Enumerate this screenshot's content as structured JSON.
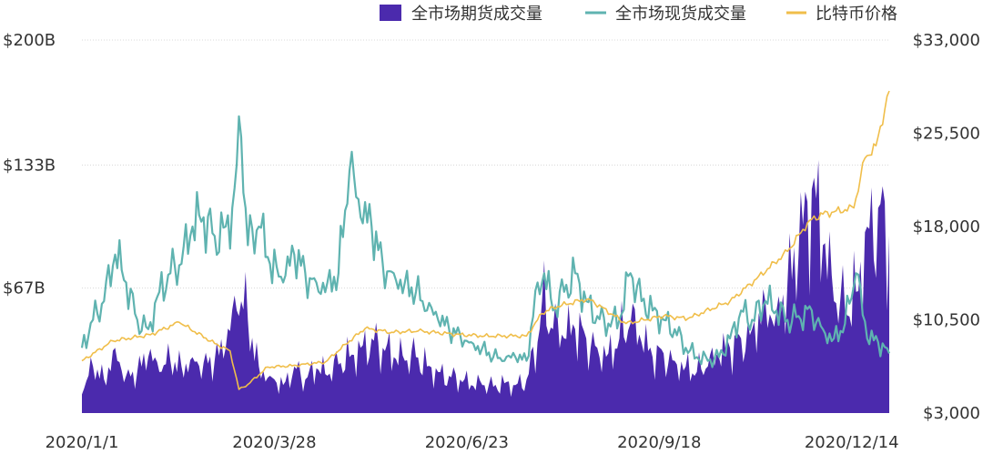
{
  "chart_data": {
    "type": "area",
    "legend": [
      {
        "name": "全市场期货成交量",
        "color": "#4b2aad",
        "marker": "square"
      },
      {
        "name": "全市场现货成交量",
        "color": "#5fb3b0",
        "marker": "line"
      },
      {
        "name": "比特币价格",
        "color": "#f0be4a",
        "marker": "line"
      }
    ],
    "legend_position": "top-right",
    "x_ticks": [
      "2020/1/1",
      "2020/3/28",
      "2020/6/23",
      "2020/9/18",
      "2020/12/14"
    ],
    "x_range": [
      "2020/1/1",
      "2020/12/31"
    ],
    "y_left": {
      "ticks": [
        "$200B",
        "$133B",
        "$67B"
      ],
      "tick_values": [
        200,
        133,
        67
      ],
      "range": [
        0,
        200
      ],
      "unit": "B USD"
    },
    "y_right": {
      "ticks": [
        "$33,000",
        "$25,500",
        "$18,000",
        "$10,500",
        "$3,000"
      ],
      "tick_values": [
        33000,
        25500,
        18000,
        10500,
        3000
      ],
      "range": [
        3000,
        33000
      ]
    },
    "grid": "horizontal dotted",
    "series": [
      {
        "name": "全市场期货成交量",
        "axis": "left",
        "kind": "area",
        "points": [
          [
            "2020/1/1",
            10
          ],
          [
            "2020/1/6",
            25
          ],
          [
            "2020/1/11",
            18
          ],
          [
            "2020/1/16",
            35
          ],
          [
            "2020/1/21",
            20
          ],
          [
            "2020/1/26",
            22
          ],
          [
            "2020/1/31",
            30
          ],
          [
            "2020/2/5",
            22
          ],
          [
            "2020/2/10",
            28
          ],
          [
            "2020/2/15",
            25
          ],
          [
            "2020/2/20",
            30
          ],
          [
            "2020/2/25",
            27
          ],
          [
            "2020/3/1",
            28
          ],
          [
            "2020/3/6",
            35
          ],
          [
            "2020/3/11",
            55
          ],
          [
            "2020/3/13",
            60
          ],
          [
            "2020/3/16",
            50
          ],
          [
            "2020/3/21",
            25
          ],
          [
            "2020/3/26",
            20
          ],
          [
            "2020/4/1",
            15
          ],
          [
            "2020/4/6",
            25
          ],
          [
            "2020/4/11",
            18
          ],
          [
            "2020/4/16",
            24
          ],
          [
            "2020/4/21",
            20
          ],
          [
            "2020/4/26",
            26
          ],
          [
            "2020/5/1",
            30
          ],
          [
            "2020/5/6",
            35
          ],
          [
            "2020/5/11",
            40
          ],
          [
            "2020/5/16",
            35
          ],
          [
            "2020/5/21",
            30
          ],
          [
            "2020/5/26",
            28
          ],
          [
            "2020/5/31",
            30
          ],
          [
            "2020/6/5",
            25
          ],
          [
            "2020/6/10",
            22
          ],
          [
            "2020/6/15",
            20
          ],
          [
            "2020/6/20",
            18
          ],
          [
            "2020/6/25",
            15
          ],
          [
            "2020/6/30",
            15
          ],
          [
            "2020/7/5",
            14
          ],
          [
            "2020/7/10",
            16
          ],
          [
            "2020/7/15",
            15
          ],
          [
            "2020/7/20",
            18
          ],
          [
            "2020/7/25",
            38
          ],
          [
            "2020/7/27",
            60
          ],
          [
            "2020/8/1",
            45
          ],
          [
            "2020/8/6",
            40
          ],
          [
            "2020/8/11",
            45
          ],
          [
            "2020/8/16",
            40
          ],
          [
            "2020/8/21",
            35
          ],
          [
            "2020/8/26",
            32
          ],
          [
            "2020/8/31",
            40
          ],
          [
            "2020/9/5",
            48
          ],
          [
            "2020/9/10",
            38
          ],
          [
            "2020/9/15",
            30
          ],
          [
            "2020/9/20",
            32
          ],
          [
            "2020/9/25",
            28
          ],
          [
            "2020/9/30",
            25
          ],
          [
            "2020/10/5",
            22
          ],
          [
            "2020/10/10",
            25
          ],
          [
            "2020/10/15",
            30
          ],
          [
            "2020/10/20",
            35
          ],
          [
            "2020/10/25",
            40
          ],
          [
            "2020/10/30",
            45
          ],
          [
            "2020/11/5",
            60
          ],
          [
            "2020/11/10",
            55
          ],
          [
            "2020/11/15",
            70
          ],
          [
            "2020/11/20",
            85
          ],
          [
            "2020/11/26",
            120
          ],
          [
            "2020/12/1",
            90
          ],
          [
            "2020/12/6",
            60
          ],
          [
            "2020/12/11",
            55
          ],
          [
            "2020/12/16",
            65
          ],
          [
            "2020/12/21",
            100
          ],
          [
            "2020/12/26",
            110
          ],
          [
            "2020/12/31",
            95
          ]
        ]
      },
      {
        "name": "全市场现货成交量",
        "axis": "left",
        "kind": "line",
        "points": [
          [
            "2020/1/1",
            35
          ],
          [
            "2020/1/6",
            50
          ],
          [
            "2020/1/11",
            60
          ],
          [
            "2020/1/16",
            85
          ],
          [
            "2020/1/21",
            70
          ],
          [
            "2020/1/26",
            50
          ],
          [
            "2020/1/31",
            45
          ],
          [
            "2020/2/5",
            65
          ],
          [
            "2020/2/10",
            75
          ],
          [
            "2020/2/15",
            80
          ],
          [
            "2020/2/20",
            100
          ],
          [
            "2020/2/25",
            105
          ],
          [
            "2020/3/1",
            95
          ],
          [
            "2020/3/6",
            100
          ],
          [
            "2020/3/9",
            110
          ],
          [
            "2020/3/13",
            148
          ],
          [
            "2020/3/16",
            90
          ],
          [
            "2020/3/21",
            100
          ],
          [
            "2020/3/26",
            80
          ],
          [
            "2020/4/1",
            70
          ],
          [
            "2020/4/6",
            85
          ],
          [
            "2020/4/11",
            75
          ],
          [
            "2020/4/16",
            70
          ],
          [
            "2020/4/21",
            70
          ],
          [
            "2020/4/26",
            75
          ],
          [
            "2020/5/1",
            130
          ],
          [
            "2020/5/6",
            105
          ],
          [
            "2020/5/11",
            100
          ],
          [
            "2020/5/16",
            80
          ],
          [
            "2020/5/21",
            75
          ],
          [
            "2020/5/26",
            70
          ],
          [
            "2020/5/31",
            65
          ],
          [
            "2020/6/5",
            55
          ],
          [
            "2020/6/10",
            50
          ],
          [
            "2020/6/15",
            45
          ],
          [
            "2020/6/20",
            42
          ],
          [
            "2020/6/25",
            38
          ],
          [
            "2020/6/30",
            35
          ],
          [
            "2020/7/5",
            30
          ],
          [
            "2020/7/10",
            28
          ],
          [
            "2020/7/15",
            30
          ],
          [
            "2020/7/20",
            28
          ],
          [
            "2020/7/25",
            70
          ],
          [
            "2020/7/28",
            75
          ],
          [
            "2020/8/1",
            55
          ],
          [
            "2020/8/6",
            65
          ],
          [
            "2020/8/11",
            75
          ],
          [
            "2020/8/16",
            60
          ],
          [
            "2020/8/21",
            52
          ],
          [
            "2020/8/26",
            48
          ],
          [
            "2020/8/31",
            50
          ],
          [
            "2020/9/5",
            75
          ],
          [
            "2020/9/10",
            60
          ],
          [
            "2020/9/15",
            55
          ],
          [
            "2020/9/20",
            50
          ],
          [
            "2020/9/25",
            45
          ],
          [
            "2020/9/30",
            35
          ],
          [
            "2020/10/5",
            30
          ],
          [
            "2020/10/10",
            28
          ],
          [
            "2020/10/15",
            30
          ],
          [
            "2020/10/20",
            40
          ],
          [
            "2020/10/25",
            55
          ],
          [
            "2020/10/30",
            50
          ],
          [
            "2020/11/5",
            60
          ],
          [
            "2020/11/10",
            55
          ],
          [
            "2020/11/15",
            50
          ],
          [
            "2020/11/20",
            52
          ],
          [
            "2020/11/26",
            55
          ],
          [
            "2020/12/1",
            45
          ],
          [
            "2020/12/6",
            40
          ],
          [
            "2020/12/11",
            48
          ],
          [
            "2020/12/16",
            75
          ],
          [
            "2020/12/21",
            40
          ],
          [
            "2020/12/26",
            38
          ],
          [
            "2020/12/31",
            32
          ]
        ]
      },
      {
        "name": "比特币价格",
        "axis": "right",
        "kind": "line",
        "points": [
          [
            "2020/1/1",
            7200
          ],
          [
            "2020/1/15",
            8800
          ],
          [
            "2020/2/1",
            9300
          ],
          [
            "2020/2/14",
            10300
          ],
          [
            "2020/3/1",
            8600
          ],
          [
            "2020/3/8",
            8000
          ],
          [
            "2020/3/12",
            4900
          ],
          [
            "2020/3/16",
            5300
          ],
          [
            "2020/3/25",
            6700
          ],
          [
            "2020/4/5",
            6800
          ],
          [
            "2020/4/20",
            7100
          ],
          [
            "2020/5/1",
            8800
          ],
          [
            "2020/5/8",
            9800
          ],
          [
            "2020/5/20",
            9500
          ],
          [
            "2020/6/1",
            9600
          ],
          [
            "2020/6/20",
            9300
          ],
          [
            "2020/7/1",
            9200
          ],
          [
            "2020/7/20",
            9200
          ],
          [
            "2020/7/27",
            11000
          ],
          [
            "2020/8/1",
            11500
          ],
          [
            "2020/8/17",
            12200
          ],
          [
            "2020/9/3",
            10200
          ],
          [
            "2020/9/20",
            10800
          ],
          [
            "2020/10/1",
            10600
          ],
          [
            "2020/10/20",
            12000
          ],
          [
            "2020/11/1",
            13800
          ],
          [
            "2020/11/15",
            16000
          ],
          [
            "2020/11/25",
            18500
          ],
          [
            "2020/12/1",
            19000
          ],
          [
            "2020/12/15",
            19500
          ],
          [
            "2020/12/20",
            23500
          ],
          [
            "2020/12/25",
            24500
          ],
          [
            "2020/12/31",
            28900
          ]
        ]
      }
    ]
  }
}
